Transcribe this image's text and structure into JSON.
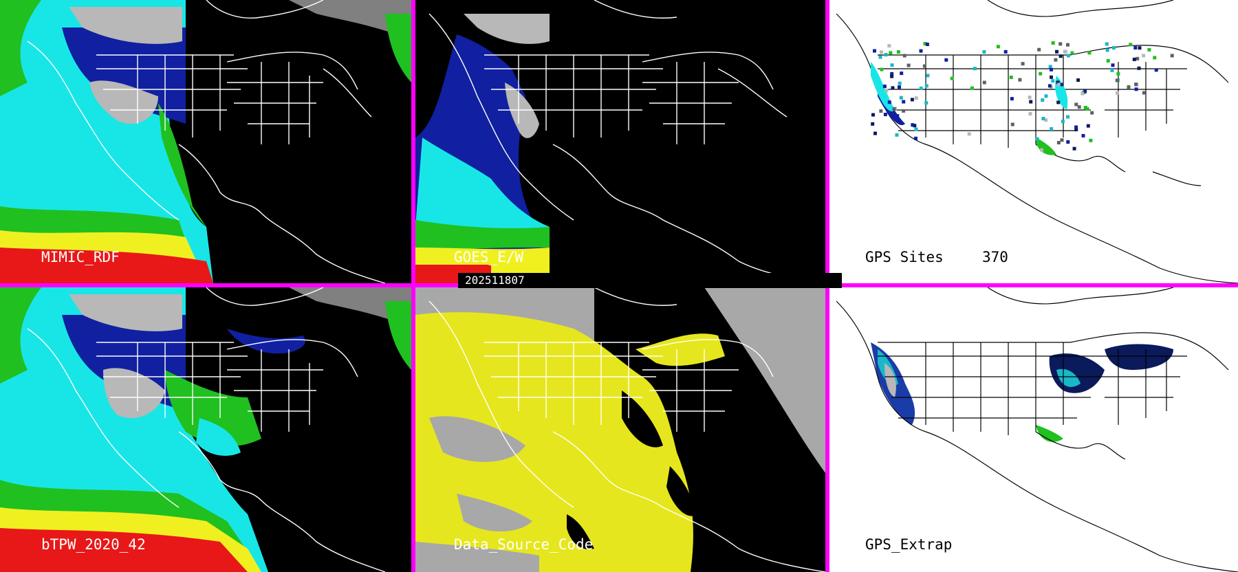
{
  "panels": [
    {
      "id": "mimic",
      "label": "MIMIC_RDF"
    },
    {
      "id": "goes",
      "label": "GOES_E/W"
    },
    {
      "id": "gps-sites",
      "label": "GPS Sites",
      "count": "370"
    },
    {
      "id": "btpw",
      "label": "bTPW_2020_42"
    },
    {
      "id": "source",
      "label": "Data_Source_Code"
    },
    {
      "id": "gps-extrap",
      "label": "GPS_Extrap"
    }
  ],
  "timestamp": "202511807",
  "colors": {
    "divider": "#ff00ff",
    "background": "#000000",
    "map_line_dark": "#ffffff",
    "map_line_light": "#000000",
    "cloud_gray": "#b8b8b8",
    "cyan": "#18e6e6",
    "blue": "#1020a0",
    "green": "#20c020",
    "yellow": "#f0f020",
    "red": "#e81818",
    "source_yellow": "#e6e61e",
    "source_gray": "#a8a8a8"
  }
}
